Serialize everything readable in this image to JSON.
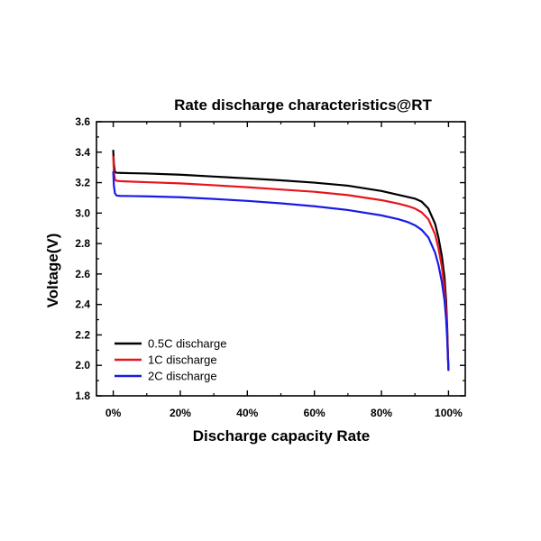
{
  "chart_data": {
    "type": "line",
    "title": "Rate discharge characteristics@RT",
    "xlabel": "Discharge capacity Rate",
    "ylabel": "Voltage(V)",
    "xlim": [
      -5,
      105
    ],
    "ylim": [
      1.8,
      3.6
    ],
    "x_ticks": [
      0,
      20,
      40,
      60,
      80,
      100
    ],
    "x_tick_labels": [
      "0%",
      "20%",
      "40%",
      "60%",
      "80%",
      "100%"
    ],
    "y_ticks": [
      1.8,
      2.0,
      2.2,
      2.4,
      2.6,
      2.8,
      3.0,
      3.2,
      3.4,
      3.6
    ],
    "y_tick_labels": [
      "1.8",
      "2.0",
      "2.2",
      "2.4",
      "2.6",
      "2.8",
      "3.0",
      "3.2",
      "3.4",
      "3.6"
    ],
    "grid": false,
    "legend_position": "bottom-left",
    "series": [
      {
        "name": "0.5C discharge",
        "color": "#000000",
        "x": [
          0,
          0.2,
          0.5,
          1,
          2,
          5,
          10,
          20,
          30,
          40,
          50,
          60,
          70,
          80,
          85,
          88,
          90,
          92,
          94,
          96,
          97,
          98,
          98.8,
          99.3,
          99.6,
          99.8,
          100
        ],
        "y": [
          3.41,
          3.32,
          3.27,
          3.265,
          3.264,
          3.262,
          3.26,
          3.252,
          3.24,
          3.228,
          3.215,
          3.2,
          3.18,
          3.145,
          3.12,
          3.105,
          3.095,
          3.075,
          3.03,
          2.93,
          2.84,
          2.72,
          2.58,
          2.42,
          2.26,
          2.1,
          1.97
        ]
      },
      {
        "name": "1C discharge",
        "color": "#e8141c",
        "x": [
          0,
          0.2,
          0.5,
          1,
          2,
          5,
          10,
          20,
          30,
          40,
          50,
          60,
          70,
          80,
          85,
          88,
          90,
          92,
          94,
          96,
          97,
          98,
          98.8,
          99.3,
          99.6,
          99.8,
          100
        ],
        "y": [
          3.37,
          3.27,
          3.22,
          3.212,
          3.21,
          3.207,
          3.203,
          3.195,
          3.183,
          3.17,
          3.155,
          3.14,
          3.118,
          3.085,
          3.062,
          3.045,
          3.03,
          3.005,
          2.96,
          2.86,
          2.77,
          2.65,
          2.51,
          2.36,
          2.22,
          2.08,
          1.97
        ]
      },
      {
        "name": "2C discharge",
        "color": "#1a1ae6",
        "x": [
          0,
          0.2,
          0.5,
          1,
          2,
          5,
          10,
          20,
          30,
          40,
          50,
          60,
          70,
          80,
          85,
          88,
          90,
          92,
          94,
          96,
          97,
          98,
          98.8,
          99.3,
          99.6,
          99.8,
          100
        ],
        "y": [
          3.27,
          3.18,
          3.13,
          3.115,
          3.113,
          3.112,
          3.11,
          3.104,
          3.093,
          3.08,
          3.064,
          3.045,
          3.02,
          2.985,
          2.96,
          2.94,
          2.92,
          2.89,
          2.84,
          2.74,
          2.66,
          2.55,
          2.43,
          2.3,
          2.18,
          2.06,
          1.97
        ]
      }
    ]
  }
}
